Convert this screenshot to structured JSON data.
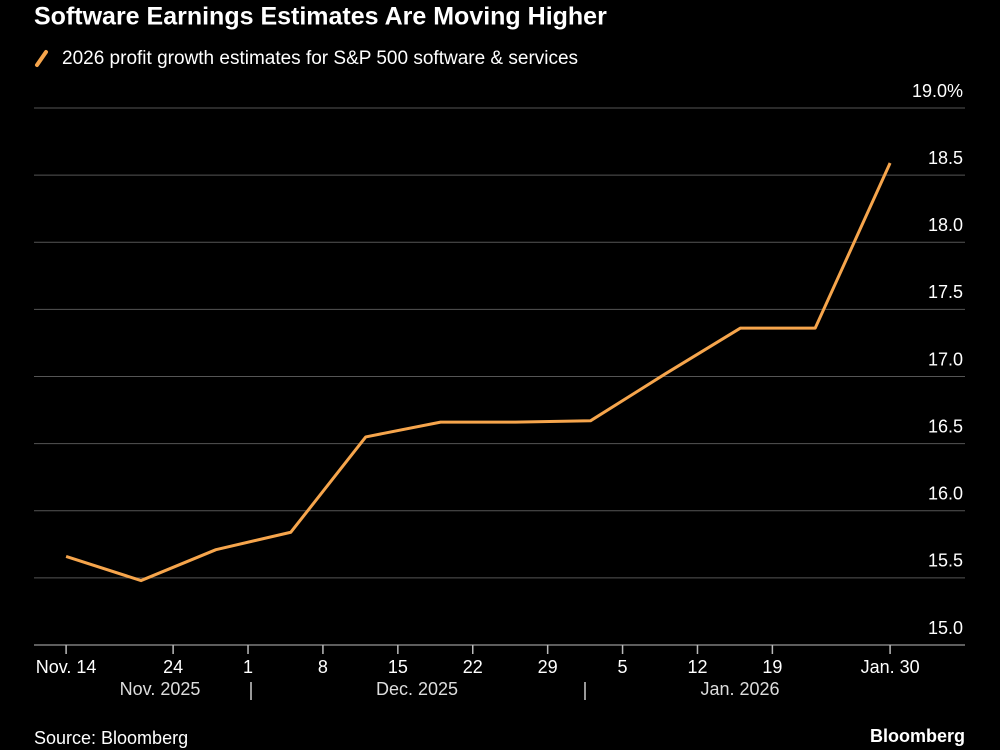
{
  "chart_data": {
    "type": "line",
    "title": "Software Earnings Estimates Are Moving Higher",
    "source": "Source: Bloomberg",
    "brand": "Bloomberg",
    "x": [
      "2025-11-14",
      "2025-11-21",
      "2025-11-28",
      "2025-12-05",
      "2025-12-12",
      "2025-12-19",
      "2025-12-26",
      "2026-01-02",
      "2026-01-09",
      "2026-01-16",
      "2026-01-23",
      "2026-01-30"
    ],
    "series": [
      {
        "name": "2026 profit growth estimates for S&P 500 software & services",
        "color": "#f6a54c",
        "values": [
          15.66,
          15.48,
          15.71,
          15.84,
          16.55,
          16.66,
          16.66,
          16.67,
          17.02,
          17.36,
          17.36,
          18.59
        ]
      }
    ],
    "xlim": [
      "2025-11-11",
      "2026-02-06"
    ],
    "xticks": [
      {
        "value": "2025-11-14",
        "label": "Nov. 14"
      },
      {
        "value": "2025-11-24",
        "label": "24"
      },
      {
        "value": "2025-12-01",
        "label": "1"
      },
      {
        "value": "2025-12-08",
        "label": "8"
      },
      {
        "value": "2025-12-15",
        "label": "15"
      },
      {
        "value": "2025-12-22",
        "label": "22"
      },
      {
        "value": "2025-12-29",
        "label": "29"
      },
      {
        "value": "2026-01-05",
        "label": "5"
      },
      {
        "value": "2026-01-12",
        "label": "12"
      },
      {
        "value": "2026-01-19",
        "label": "19"
      },
      {
        "value": "2026-01-30",
        "label": "Jan. 30"
      }
    ],
    "x_group_labels": [
      "Nov. 2025",
      "Dec. 2025",
      "Jan. 2026"
    ],
    "ylim": [
      15,
      19
    ],
    "yticks": [
      {
        "value": 15,
        "label": "15.0"
      },
      15.5,
      {
        "value": 16,
        "label": "16.0"
      },
      16.5,
      {
        "value": 17,
        "label": "17.0"
      },
      17.5,
      {
        "value": 18,
        "label": "18.0"
      },
      18.5,
      {
        "value": 19,
        "label": "19.0%"
      }
    ],
    "grid": true
  }
}
